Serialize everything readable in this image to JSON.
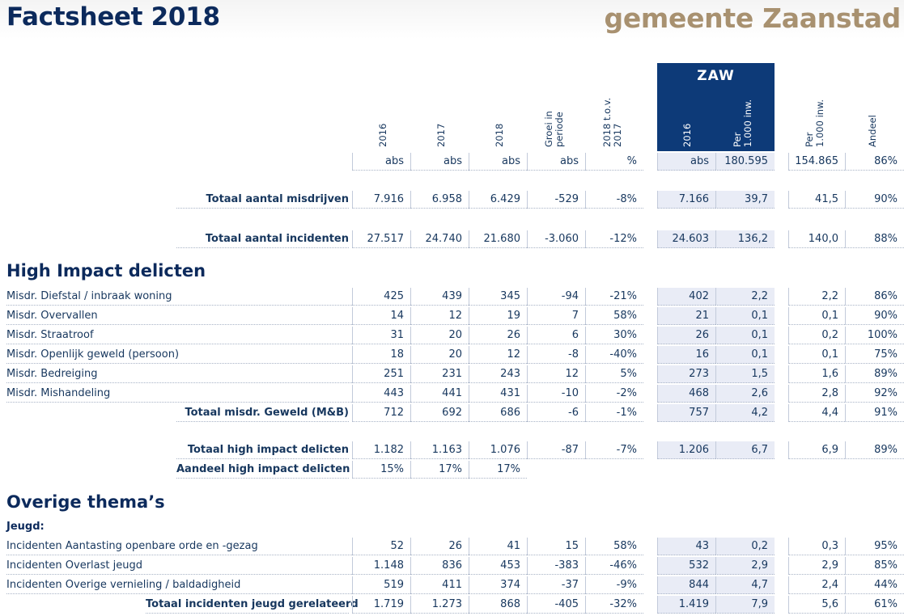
{
  "title": "Factsheet 2018",
  "brand": "gemeente Zaanstad",
  "zaw_label": "ZAW",
  "col_headers": [
    "2016",
    "2017",
    "2018",
    "Groei in periode",
    "2018 t.o.v. 2017",
    "2016",
    "Per 1.000 inw.",
    "Per 1.000 inw.",
    "Andeel"
  ],
  "units": [
    "abs",
    "abs",
    "abs",
    "abs",
    "%",
    "abs",
    "180.595",
    "154.865",
    "86%"
  ],
  "totals": [
    {
      "label": "Totaal aantal misdrijven",
      "values": [
        "7.916",
        "6.958",
        "6.429",
        "-529",
        "-8%",
        "7.166",
        "39,7",
        "41,5",
        "90%"
      ]
    },
    {
      "label": "Totaal aantal incidenten",
      "values": [
        "27.517",
        "24.740",
        "21.680",
        "-3.060",
        "-12%",
        "24.603",
        "136,2",
        "140,0",
        "88%"
      ]
    }
  ],
  "section_hi": "High Impact delicten",
  "hi_rows": [
    {
      "label": "Misdr. Diefstal / inbraak woning",
      "values": [
        "425",
        "439",
        "345",
        "-94",
        "-21%",
        "402",
        "2,2",
        "2,2",
        "86%"
      ]
    },
    {
      "label": "Misdr. Overvallen",
      "values": [
        "14",
        "12",
        "19",
        "7",
        "58%",
        "21",
        "0,1",
        "0,1",
        "90%"
      ]
    },
    {
      "label": "Misdr. Straatroof",
      "values": [
        "31",
        "20",
        "26",
        "6",
        "30%",
        "26",
        "0,1",
        "0,2",
        "100%"
      ]
    },
    {
      "label": "Misdr. Openlijk geweld (persoon)",
      "values": [
        "18",
        "20",
        "12",
        "-8",
        "-40%",
        "16",
        "0,1",
        "0,1",
        "75%"
      ]
    },
    {
      "label": "Misdr. Bedreiging",
      "values": [
        "251",
        "231",
        "243",
        "12",
        "5%",
        "273",
        "1,5",
        "1,6",
        "89%"
      ]
    },
    {
      "label": "Misdr. Mishandeling",
      "values": [
        "443",
        "441",
        "431",
        "-10",
        "-2%",
        "468",
        "2,6",
        "2,8",
        "92%"
      ]
    },
    {
      "label": "Totaal misdr. Geweld (M&B)",
      "values": [
        "712",
        "692",
        "686",
        "-6",
        "-1%",
        "757",
        "4,2",
        "4,4",
        "91%"
      ],
      "total": true
    }
  ],
  "hi_total": {
    "label": "Totaal high impact delicten",
    "values": [
      "1.182",
      "1.163",
      "1.076",
      "-87",
      "-7%",
      "1.206",
      "6,7",
      "6,9",
      "89%"
    ]
  },
  "hi_share": {
    "label": "Aandeel high impact delicten",
    "values": [
      "15%",
      "17%",
      "17%"
    ]
  },
  "section_ov": "Overige thema’s",
  "sub_jeugd": "Jeugd:",
  "jeugd_rows": [
    {
      "label": "Incidenten Aantasting openbare orde en -gezag",
      "values": [
        "52",
        "26",
        "41",
        "15",
        "58%",
        "43",
        "0,2",
        "0,3",
        "95%"
      ]
    },
    {
      "label": "Incidenten Overlast jeugd",
      "values": [
        "1.148",
        "836",
        "453",
        "-383",
        "-46%",
        "532",
        "2,9",
        "2,9",
        "85%"
      ]
    },
    {
      "label": "Incidenten Overige vernieling / baldadigheid",
      "values": [
        "519",
        "411",
        "374",
        "-37",
        "-9%",
        "844",
        "4,7",
        "2,4",
        "44%"
      ]
    },
    {
      "label": "Totaal incidenten jeugd gerelateerd",
      "values": [
        "1.719",
        "1.273",
        "868",
        "-405",
        "-32%",
        "1.419",
        "7,9",
        "5,6",
        "61%"
      ],
      "total": true
    }
  ]
}
